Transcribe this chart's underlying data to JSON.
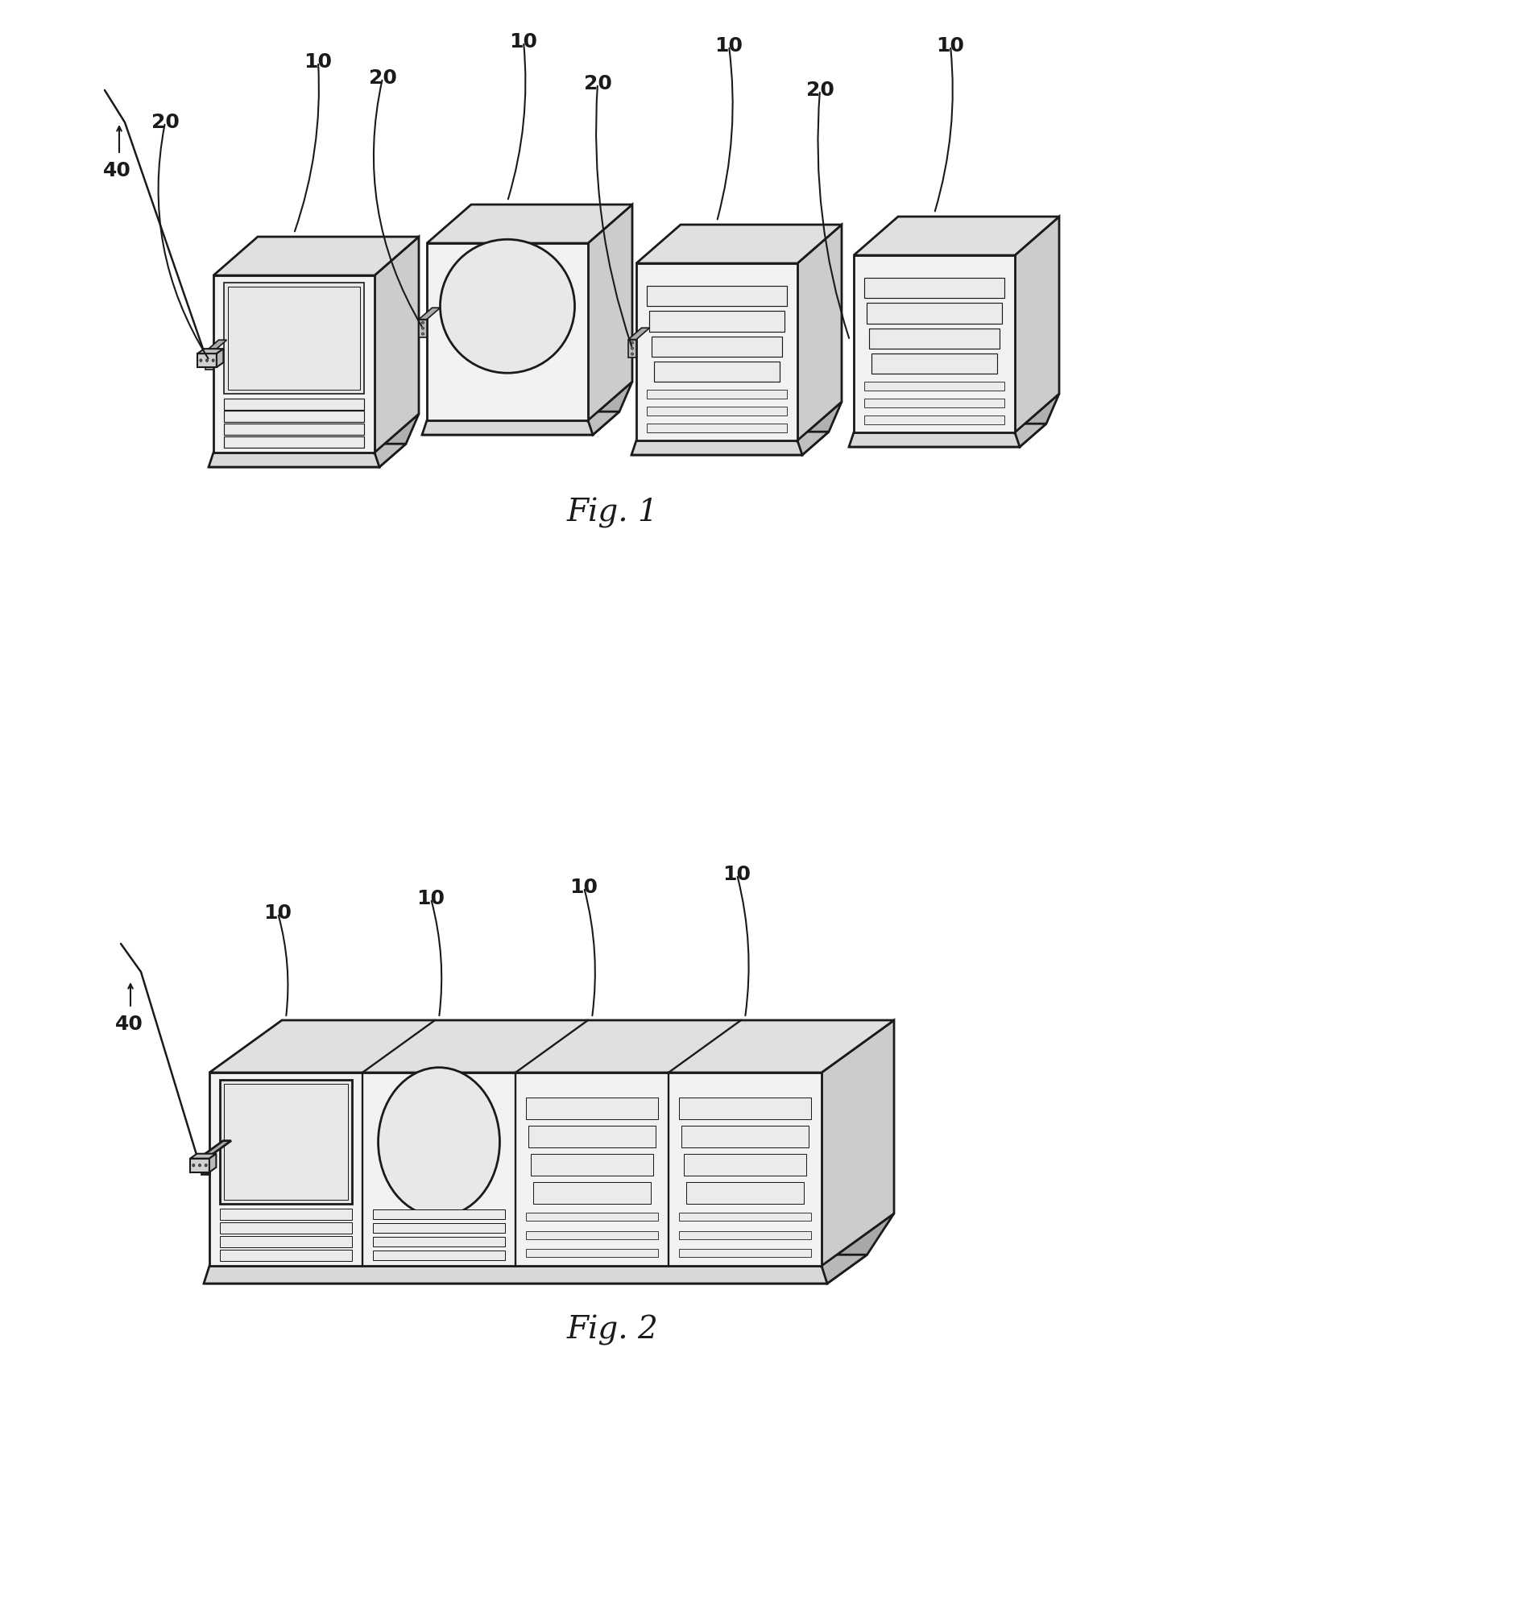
{
  "background_color": "#ffffff",
  "line_color": "#1a1a1a",
  "fig_width": 19.12,
  "fig_height": 19.92,
  "fig1_label": "Fig. 1",
  "fig2_label": "Fig. 2",
  "label_10": "10",
  "label_20": "20",
  "label_40": "40",
  "face_color": "#f2f2f2",
  "top_color": "#e0e0e0",
  "side_color": "#cccccc",
  "base_color": "#d8d8d8",
  "panel_color": "#e8e8e8",
  "rib_color": "#ebebeb",
  "annot_fontsize": 18,
  "caption_fontsize": 28
}
